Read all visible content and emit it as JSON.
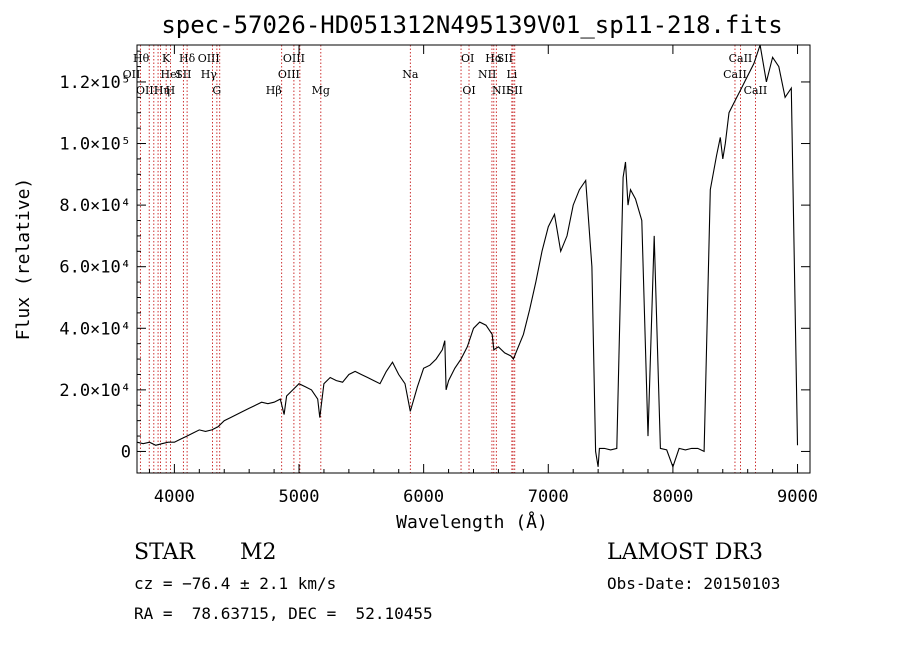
{
  "chart_data": {
    "type": "line",
    "title": "spec-57026-HD051312N495139V01_sp11-218.fits",
    "xlabel": "Wavelength (Å)",
    "ylabel": "Flux (relative)",
    "xlim": [
      3700,
      9100
    ],
    "ylim": [
      -7000,
      132000
    ],
    "x_ticks": [
      {
        "value": 4000,
        "label": "4000"
      },
      {
        "value": 5000,
        "label": "5000"
      },
      {
        "value": 6000,
        "label": "6000"
      },
      {
        "value": 7000,
        "label": "7000"
      },
      {
        "value": 8000,
        "label": "8000"
      },
      {
        "value": 9000,
        "label": "9000"
      }
    ],
    "y_ticks": [
      {
        "value": 0,
        "label": "0"
      },
      {
        "value": 20000,
        "label": "2.0×10⁴"
      },
      {
        "value": 40000,
        "label": "4.0×10⁴"
      },
      {
        "value": 60000,
        "label": "6.0×10⁴"
      },
      {
        "value": 80000,
        "label": "8.0×10⁴"
      },
      {
        "value": 100000,
        "label": "1.0×10⁵"
      },
      {
        "value": 120000,
        "label": "1.2×10⁵"
      }
    ],
    "series": [
      {
        "name": "spectrum",
        "x": [
          3700,
          3750,
          3800,
          3850,
          3900,
          3950,
          4000,
          4050,
          4100,
          4150,
          4200,
          4250,
          4300,
          4350,
          4400,
          4450,
          4500,
          4550,
          4600,
          4650,
          4700,
          4750,
          4800,
          4850,
          4880,
          4900,
          4950,
          5000,
          5050,
          5100,
          5150,
          5167,
          5200,
          5250,
          5300,
          5350,
          5400,
          5450,
          5500,
          5550,
          5600,
          5650,
          5700,
          5750,
          5800,
          5850,
          5893,
          5950,
          6000,
          6050,
          6100,
          6150,
          6170,
          6180,
          6200,
          6250,
          6300,
          6350,
          6400,
          6450,
          6500,
          6550,
          6563,
          6600,
          6650,
          6700,
          6720,
          6750,
          6800,
          6850,
          6900,
          6950,
          7000,
          7050,
          7100,
          7150,
          7200,
          7250,
          7300,
          7350,
          7380,
          7400,
          7410,
          7450,
          7500,
          7550,
          7600,
          7620,
          7640,
          7660,
          7700,
          7750,
          7800,
          7850,
          7900,
          7950,
          8000,
          8050,
          8100,
          8150,
          8200,
          8250,
          8300,
          8350,
          8380,
          8400,
          8420,
          8450,
          8500,
          8550,
          8600,
          8650,
          8700,
          8750,
          8800,
          8850,
          8900,
          8950,
          9000
        ],
        "y": [
          3000,
          2500,
          3000,
          2000,
          2500,
          3000,
          3000,
          4000,
          5000,
          6000,
          7000,
          6500,
          7000,
          8000,
          10000,
          11000,
          12000,
          13000,
          14000,
          15000,
          16000,
          15500,
          16000,
          17000,
          12000,
          18000,
          20000,
          22000,
          21000,
          20000,
          17000,
          11000,
          22000,
          24000,
          23000,
          22500,
          25000,
          26000,
          25000,
          24000,
          23000,
          22000,
          26000,
          29000,
          25000,
          22000,
          13000,
          21000,
          27000,
          28000,
          30000,
          33000,
          36000,
          20000,
          23000,
          27000,
          30000,
          34000,
          40000,
          42000,
          41000,
          38000,
          33000,
          34000,
          32000,
          31000,
          30000,
          33000,
          38000,
          46000,
          55000,
          65000,
          73000,
          77000,
          65000,
          70000,
          80000,
          85000,
          88000,
          60000,
          0,
          -5000,
          1000,
          1000,
          500,
          1000,
          89000,
          94000,
          80000,
          85000,
          82000,
          75000,
          5000,
          70000,
          1000,
          500,
          -5000,
          1000,
          500,
          1000,
          1000,
          0,
          85000,
          96000,
          102000,
          95000,
          100000,
          110000,
          114000,
          118000,
          122000,
          126000,
          132000,
          120000,
          128000,
          125000,
          115000,
          118000,
          2000
        ]
      }
    ],
    "line_labels": [
      {
        "name": "Hθ",
        "wave": 3798,
        "row": 0,
        "anchor": "end"
      },
      {
        "name": "K",
        "wave": 3934,
        "row": 0,
        "anchor": "middle"
      },
      {
        "name": "Hδ",
        "wave": 4102,
        "row": 0,
        "anchor": "middle"
      },
      {
        "name": "OIII",
        "wave": 4364,
        "row": 0,
        "anchor": "end"
      },
      {
        "name": "OIII",
        "wave": 4959,
        "row": 0,
        "anchor": "middle"
      },
      {
        "name": "OI",
        "wave": 6300,
        "row": 0,
        "anchor": "start"
      },
      {
        "name": "Hα",
        "wave": 6563,
        "row": 0,
        "anchor": "middle"
      },
      {
        "name": "SII",
        "wave": 6717,
        "row": 0,
        "anchor": "end"
      },
      {
        "name": "CaII",
        "wave": 8542,
        "row": 0,
        "anchor": "middle"
      },
      {
        "name": "OII",
        "wave": 3727,
        "row": 1,
        "anchor": "end"
      },
      {
        "name": "HeI",
        "wave": 3889,
        "row": 1,
        "anchor": "start"
      },
      {
        "name": "SII",
        "wave": 4072,
        "row": 1,
        "anchor": "middle"
      },
      {
        "name": "Hγ",
        "wave": 4341,
        "row": 1,
        "anchor": "end"
      },
      {
        "name": "OIII",
        "wave": 5007,
        "row": 1,
        "anchor": "end"
      },
      {
        "name": "Na",
        "wave": 5893,
        "row": 1,
        "anchor": "middle"
      },
      {
        "name": "NII",
        "wave": 6583,
        "row": 1,
        "anchor": "end"
      },
      {
        "name": "Li",
        "wave": 6708,
        "row": 1,
        "anchor": "middle"
      },
      {
        "name": "CaII",
        "wave": 8498,
        "row": 1,
        "anchor": "middle"
      },
      {
        "name": "OIII",
        "wave": 3869,
        "row": 2,
        "anchor": "end"
      },
      {
        "name": "Hη",
        "wave": 3835,
        "row": 2,
        "anchor": "start"
      },
      {
        "name": "H",
        "wave": 3968,
        "row": 2,
        "anchor": "middle"
      },
      {
        "name": "G",
        "wave": 4305,
        "row": 2,
        "anchor": "start"
      },
      {
        "name": "Hβ",
        "wave": 4861,
        "row": 2,
        "anchor": "end"
      },
      {
        "name": "Mg",
        "wave": 5175,
        "row": 2,
        "anchor": "middle"
      },
      {
        "name": "OI",
        "wave": 6364,
        "row": 2,
        "anchor": "middle"
      },
      {
        "name": "NII",
        "wave": 6548,
        "row": 2,
        "anchor": "start"
      },
      {
        "name": "SII",
        "wave": 6731,
        "row": 2,
        "anchor": "middle"
      },
      {
        "name": "CaII",
        "wave": 8662,
        "row": 2,
        "anchor": "middle"
      }
    ],
    "line_marks": [
      3727,
      3798,
      3835,
      3869,
      3889,
      3934,
      3968,
      4072,
      4102,
      4305,
      4341,
      4364,
      4861,
      4959,
      5007,
      5175,
      5893,
      6300,
      6364,
      6548,
      6563,
      6583,
      6708,
      6717,
      6731,
      8498,
      8542,
      8662
    ],
    "line_mark_color": "#c00000"
  },
  "info": {
    "class_label": "STAR",
    "subclass": "M2",
    "survey": "LAMOST DR3",
    "cz": "cz = −76.4 ± 2.1 km/s",
    "obs_date": "Obs-Date: 20150103",
    "coords": "RA =  78.63715, DEC =  52.10455"
  }
}
